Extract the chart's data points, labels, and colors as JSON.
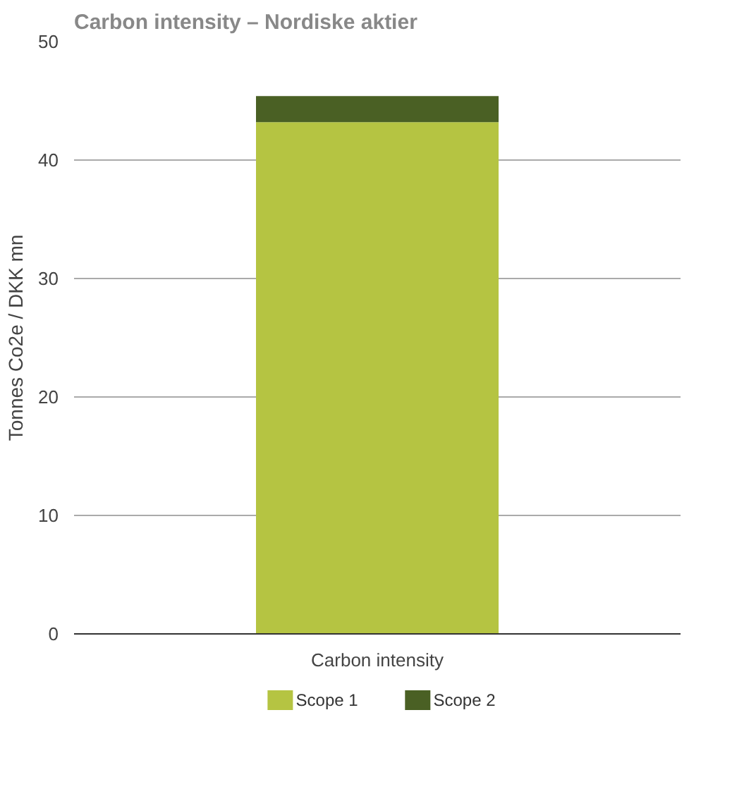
{
  "chart_data": {
    "type": "bar",
    "title": "Carbon intensity – Nordiske aktier",
    "ylabel": "Tonnes Co2e / DKK mn",
    "categories": [
      "Carbon intensity"
    ],
    "stacked": true,
    "series": [
      {
        "name": "Scope 1",
        "color": "#b5c442",
        "values": [
          43.2
        ]
      },
      {
        "name": "Scope 2",
        "color": "#4a6024",
        "values": [
          2.2
        ]
      }
    ],
    "ylim": [
      0,
      50
    ],
    "yticks": [
      0,
      10,
      20,
      30,
      40,
      50
    ],
    "grid": "y",
    "legend": "bottom"
  }
}
